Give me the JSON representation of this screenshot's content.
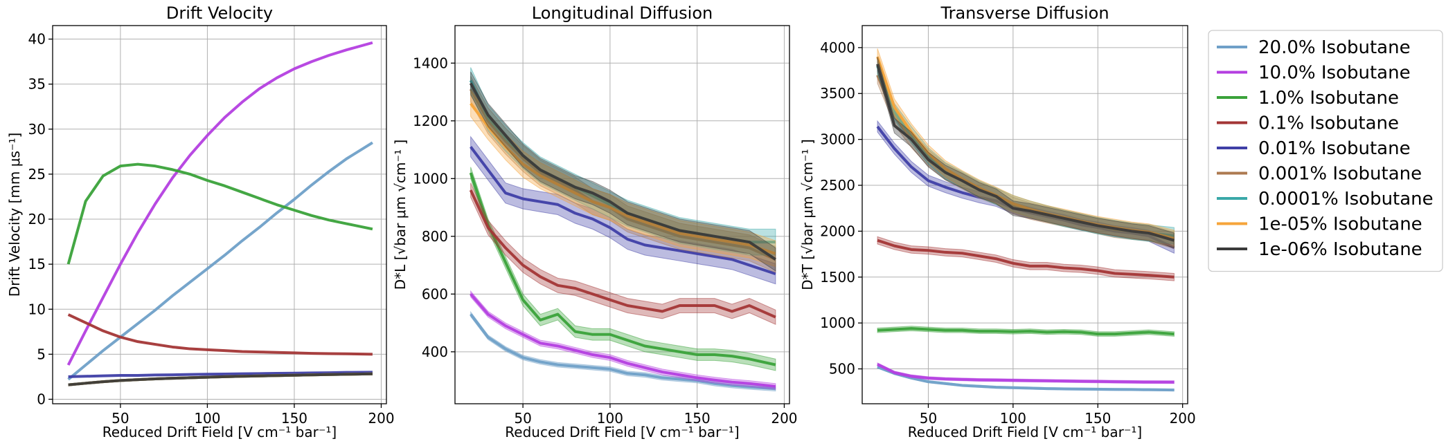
{
  "series": [
    {
      "name": "20.0% Isobutane",
      "color": "#6fa0c8"
    },
    {
      "name": "10.0% Isobutane",
      "color": "#b43fe0"
    },
    {
      "name": "1.0% Isobutane",
      "color": "#3aa23a"
    },
    {
      "name": "0.1% Isobutane",
      "color": "#a33636"
    },
    {
      "name": "0.01% Isobutane",
      "color": "#3f3fa6"
    },
    {
      "name": "0.001% Isobutane",
      "color": "#ad7a50"
    },
    {
      "name": "0.0001% Isobutane",
      "color": "#3aa8a8"
    },
    {
      "name": "1e-05% Isobutane",
      "color": "#f6a43a"
    },
    {
      "name": "1e-06% Isobutane",
      "color": "#3a3a3a"
    }
  ],
  "chart_data": [
    {
      "type": "line",
      "title": "Drift Velocity",
      "xlabel": "Reduced Drift Field [V cm⁻¹ bar⁻¹]",
      "ylabel": "Drift Velocity [mm μs⁻¹]",
      "xlim": [
        11,
        203
      ],
      "ylim": [
        -0.5,
        41.5
      ],
      "xticks": [
        50,
        100,
        150,
        200
      ],
      "yticks": [
        0,
        5,
        10,
        15,
        20,
        25,
        30,
        35,
        40
      ],
      "grid": true,
      "x": [
        20,
        30,
        40,
        50,
        60,
        70,
        80,
        90,
        100,
        110,
        120,
        130,
        140,
        150,
        160,
        170,
        180,
        195
      ],
      "series": [
        {
          "name": "20.0% Isobutane",
          "values": [
            2.2,
            3.8,
            5.4,
            6.9,
            8.4,
            9.9,
            11.5,
            13.0,
            14.5,
            16.0,
            17.6,
            19.1,
            20.7,
            22.2,
            23.8,
            25.3,
            26.7,
            28.5
          ]
        },
        {
          "name": "10.0% Isobutane",
          "values": [
            3.8,
            7.6,
            11.3,
            15.0,
            18.5,
            21.7,
            24.6,
            27.1,
            29.3,
            31.3,
            33.0,
            34.5,
            35.7,
            36.7,
            37.5,
            38.2,
            38.8,
            39.6
          ]
        },
        {
          "name": "1.0% Isobutane",
          "values": [
            15.0,
            22.0,
            24.8,
            25.9,
            26.1,
            25.9,
            25.5,
            25.0,
            24.3,
            23.7,
            23.0,
            22.3,
            21.6,
            21.0,
            20.4,
            19.9,
            19.5,
            18.9
          ]
        },
        {
          "name": "0.1% Isobutane",
          "values": [
            9.4,
            8.5,
            7.6,
            6.9,
            6.4,
            6.1,
            5.8,
            5.6,
            5.5,
            5.4,
            5.3,
            5.25,
            5.2,
            5.15,
            5.1,
            5.07,
            5.05,
            5.0
          ]
        },
        {
          "name": "0.01% Isobutane",
          "values": [
            2.5,
            2.55,
            2.6,
            2.65,
            2.65,
            2.7,
            2.72,
            2.75,
            2.78,
            2.8,
            2.83,
            2.85,
            2.88,
            2.9,
            2.93,
            2.95,
            2.98,
            3.0
          ]
        },
        {
          "name": "0.001% Isobutane",
          "values": [
            1.6,
            1.78,
            1.95,
            2.08,
            2.18,
            2.26,
            2.33,
            2.39,
            2.45,
            2.5,
            2.55,
            2.59,
            2.63,
            2.67,
            2.71,
            2.74,
            2.77,
            2.82
          ]
        },
        {
          "name": "0.0001% Isobutane",
          "values": [
            1.6,
            1.78,
            1.95,
            2.08,
            2.18,
            2.26,
            2.33,
            2.39,
            2.45,
            2.5,
            2.55,
            2.59,
            2.63,
            2.67,
            2.71,
            2.74,
            2.77,
            2.82
          ]
        },
        {
          "name": "1e-05% Isobutane",
          "values": [
            1.6,
            1.78,
            1.95,
            2.08,
            2.18,
            2.26,
            2.33,
            2.39,
            2.45,
            2.5,
            2.55,
            2.59,
            2.63,
            2.67,
            2.71,
            2.74,
            2.77,
            2.82
          ]
        },
        {
          "name": "1e-06% Isobutane",
          "values": [
            1.6,
            1.78,
            1.95,
            2.08,
            2.18,
            2.26,
            2.33,
            2.39,
            2.45,
            2.5,
            2.55,
            2.59,
            2.63,
            2.67,
            2.71,
            2.74,
            2.77,
            2.82
          ]
        }
      ]
    },
    {
      "type": "line",
      "title": "Longitudinal Diffusion",
      "xlabel": "Reduced Drift Field [V cm⁻¹ bar⁻¹]",
      "ylabel": "D*L [√bar μm √cm⁻¹ ]",
      "xlim": [
        11,
        203
      ],
      "ylim": [
        220,
        1530
      ],
      "xticks": [
        50,
        100,
        150,
        200
      ],
      "yticks": [
        400,
        600,
        800,
        1000,
        1200,
        1400
      ],
      "grid": true,
      "x": [
        20,
        30,
        40,
        50,
        60,
        70,
        80,
        90,
        100,
        110,
        120,
        130,
        140,
        150,
        160,
        170,
        180,
        195
      ],
      "series": [
        {
          "name": "20.0% Isobutane",
          "values": [
            530,
            450,
            410,
            380,
            365,
            355,
            350,
            345,
            340,
            325,
            320,
            310,
            305,
            300,
            290,
            283,
            278,
            272
          ],
          "band": 8
        },
        {
          "name": "10.0% Isobutane",
          "values": [
            600,
            530,
            490,
            460,
            430,
            420,
            405,
            390,
            380,
            360,
            345,
            330,
            320,
            310,
            302,
            295,
            290,
            280
          ],
          "band": 10
        },
        {
          "name": "1.0% Isobutane",
          "values": [
            1020,
            840,
            710,
            580,
            510,
            530,
            470,
            460,
            460,
            440,
            420,
            410,
            400,
            390,
            390,
            385,
            375,
            355
          ],
          "band": 20
        },
        {
          "name": "0.1% Isobutane",
          "values": [
            960,
            830,
            760,
            700,
            660,
            630,
            620,
            600,
            580,
            560,
            550,
            540,
            560,
            560,
            560,
            540,
            560,
            520
          ],
          "band": 25
        },
        {
          "name": "0.01% Isobutane",
          "values": [
            1110,
            1030,
            950,
            930,
            920,
            910,
            880,
            860,
            830,
            790,
            770,
            760,
            750,
            740,
            730,
            720,
            700,
            670
          ],
          "band": 35
        },
        {
          "name": "0.001% Isobutane",
          "values": [
            1310,
            1200,
            1130,
            1070,
            1020,
            990,
            960,
            920,
            900,
            860,
            840,
            820,
            800,
            790,
            780,
            770,
            760,
            720
          ],
          "band": 45
        },
        {
          "name": "0.0001% Isobutane",
          "values": [
            1340,
            1210,
            1140,
            1080,
            1030,
            1000,
            970,
            940,
            910,
            880,
            860,
            840,
            820,
            810,
            800,
            790,
            780,
            780
          ],
          "band": 45
        },
        {
          "name": "1e-05% Isobutane",
          "values": [
            1260,
            1180,
            1110,
            1050,
            1010,
            980,
            950,
            920,
            900,
            870,
            850,
            830,
            810,
            800,
            790,
            780,
            770,
            740
          ],
          "band": 45
        },
        {
          "name": "1e-06% Isobutane",
          "values": [
            1330,
            1220,
            1150,
            1080,
            1030,
            1000,
            970,
            950,
            920,
            880,
            860,
            840,
            820,
            810,
            800,
            790,
            780,
            720
          ],
          "band": 40
        }
      ]
    },
    {
      "type": "line",
      "title": "Transverse Diffusion",
      "xlabel": "Reduced Drift Field [V cm⁻¹ bar⁻¹]",
      "ylabel": "D*T [√bar μm √cm⁻¹ ]",
      "xlim": [
        11,
        203
      ],
      "ylim": [
        120,
        4240
      ],
      "xticks": [
        50,
        100,
        150,
        200
      ],
      "yticks": [
        500,
        1000,
        1500,
        2000,
        2500,
        3000,
        3500,
        4000
      ],
      "grid": true,
      "x": [
        20,
        30,
        40,
        50,
        60,
        70,
        80,
        90,
        100,
        110,
        120,
        130,
        140,
        150,
        160,
        170,
        180,
        195
      ],
      "series": [
        {
          "name": "20.0% Isobutane",
          "values": [
            520,
            450,
            400,
            360,
            340,
            320,
            310,
            300,
            295,
            290,
            285,
            282,
            280,
            278,
            276,
            275,
            273,
            270
          ],
          "band": 12
        },
        {
          "name": "10.0% Isobutane",
          "values": [
            550,
            460,
            420,
            400,
            390,
            385,
            380,
            378,
            375,
            372,
            370,
            368,
            365,
            363,
            360,
            358,
            356,
            355
          ],
          "band": 15
        },
        {
          "name": "1.0% Isobutane",
          "values": [
            920,
            930,
            940,
            930,
            920,
            920,
            910,
            910,
            905,
            910,
            900,
            905,
            900,
            880,
            880,
            890,
            900,
            880
          ],
          "band": 25
        },
        {
          "name": "0.1% Isobutane",
          "values": [
            1900,
            1840,
            1800,
            1790,
            1770,
            1760,
            1730,
            1700,
            1650,
            1620,
            1620,
            1600,
            1590,
            1570,
            1540,
            1530,
            1520,
            1500
          ],
          "band": 40
        },
        {
          "name": "0.01% Isobutane",
          "values": [
            3140,
            2900,
            2700,
            2550,
            2480,
            2420,
            2370,
            2330,
            2250,
            2200,
            2160,
            2120,
            2070,
            2040,
            2000,
            1980,
            1950,
            1820
          ],
          "band": 60
        },
        {
          "name": "0.001% Isobutane",
          "values": [
            3700,
            3250,
            3000,
            2800,
            2650,
            2550,
            2450,
            2380,
            2280,
            2220,
            2180,
            2140,
            2100,
            2060,
            2020,
            2000,
            1980,
            1900
          ],
          "band": 90
        },
        {
          "name": "0.0001% Isobutane",
          "values": [
            3800,
            3300,
            3050,
            2820,
            2660,
            2560,
            2460,
            2380,
            2300,
            2240,
            2190,
            2140,
            2100,
            2060,
            2030,
            2000,
            1980,
            1950
          ],
          "band": 90
        },
        {
          "name": "1e-05% Isobutane",
          "values": [
            3900,
            3350,
            3080,
            2850,
            2680,
            2570,
            2470,
            2390,
            2300,
            2240,
            2190,
            2150,
            2110,
            2070,
            2040,
            2010,
            1990,
            1920
          ],
          "band": 90
        },
        {
          "name": "1e-06% Isobutane",
          "values": [
            3820,
            3150,
            3000,
            2780,
            2640,
            2550,
            2450,
            2380,
            2250,
            2220,
            2180,
            2140,
            2100,
            2060,
            2030,
            2000,
            1980,
            1900
          ],
          "band": 80
        }
      ]
    }
  ]
}
